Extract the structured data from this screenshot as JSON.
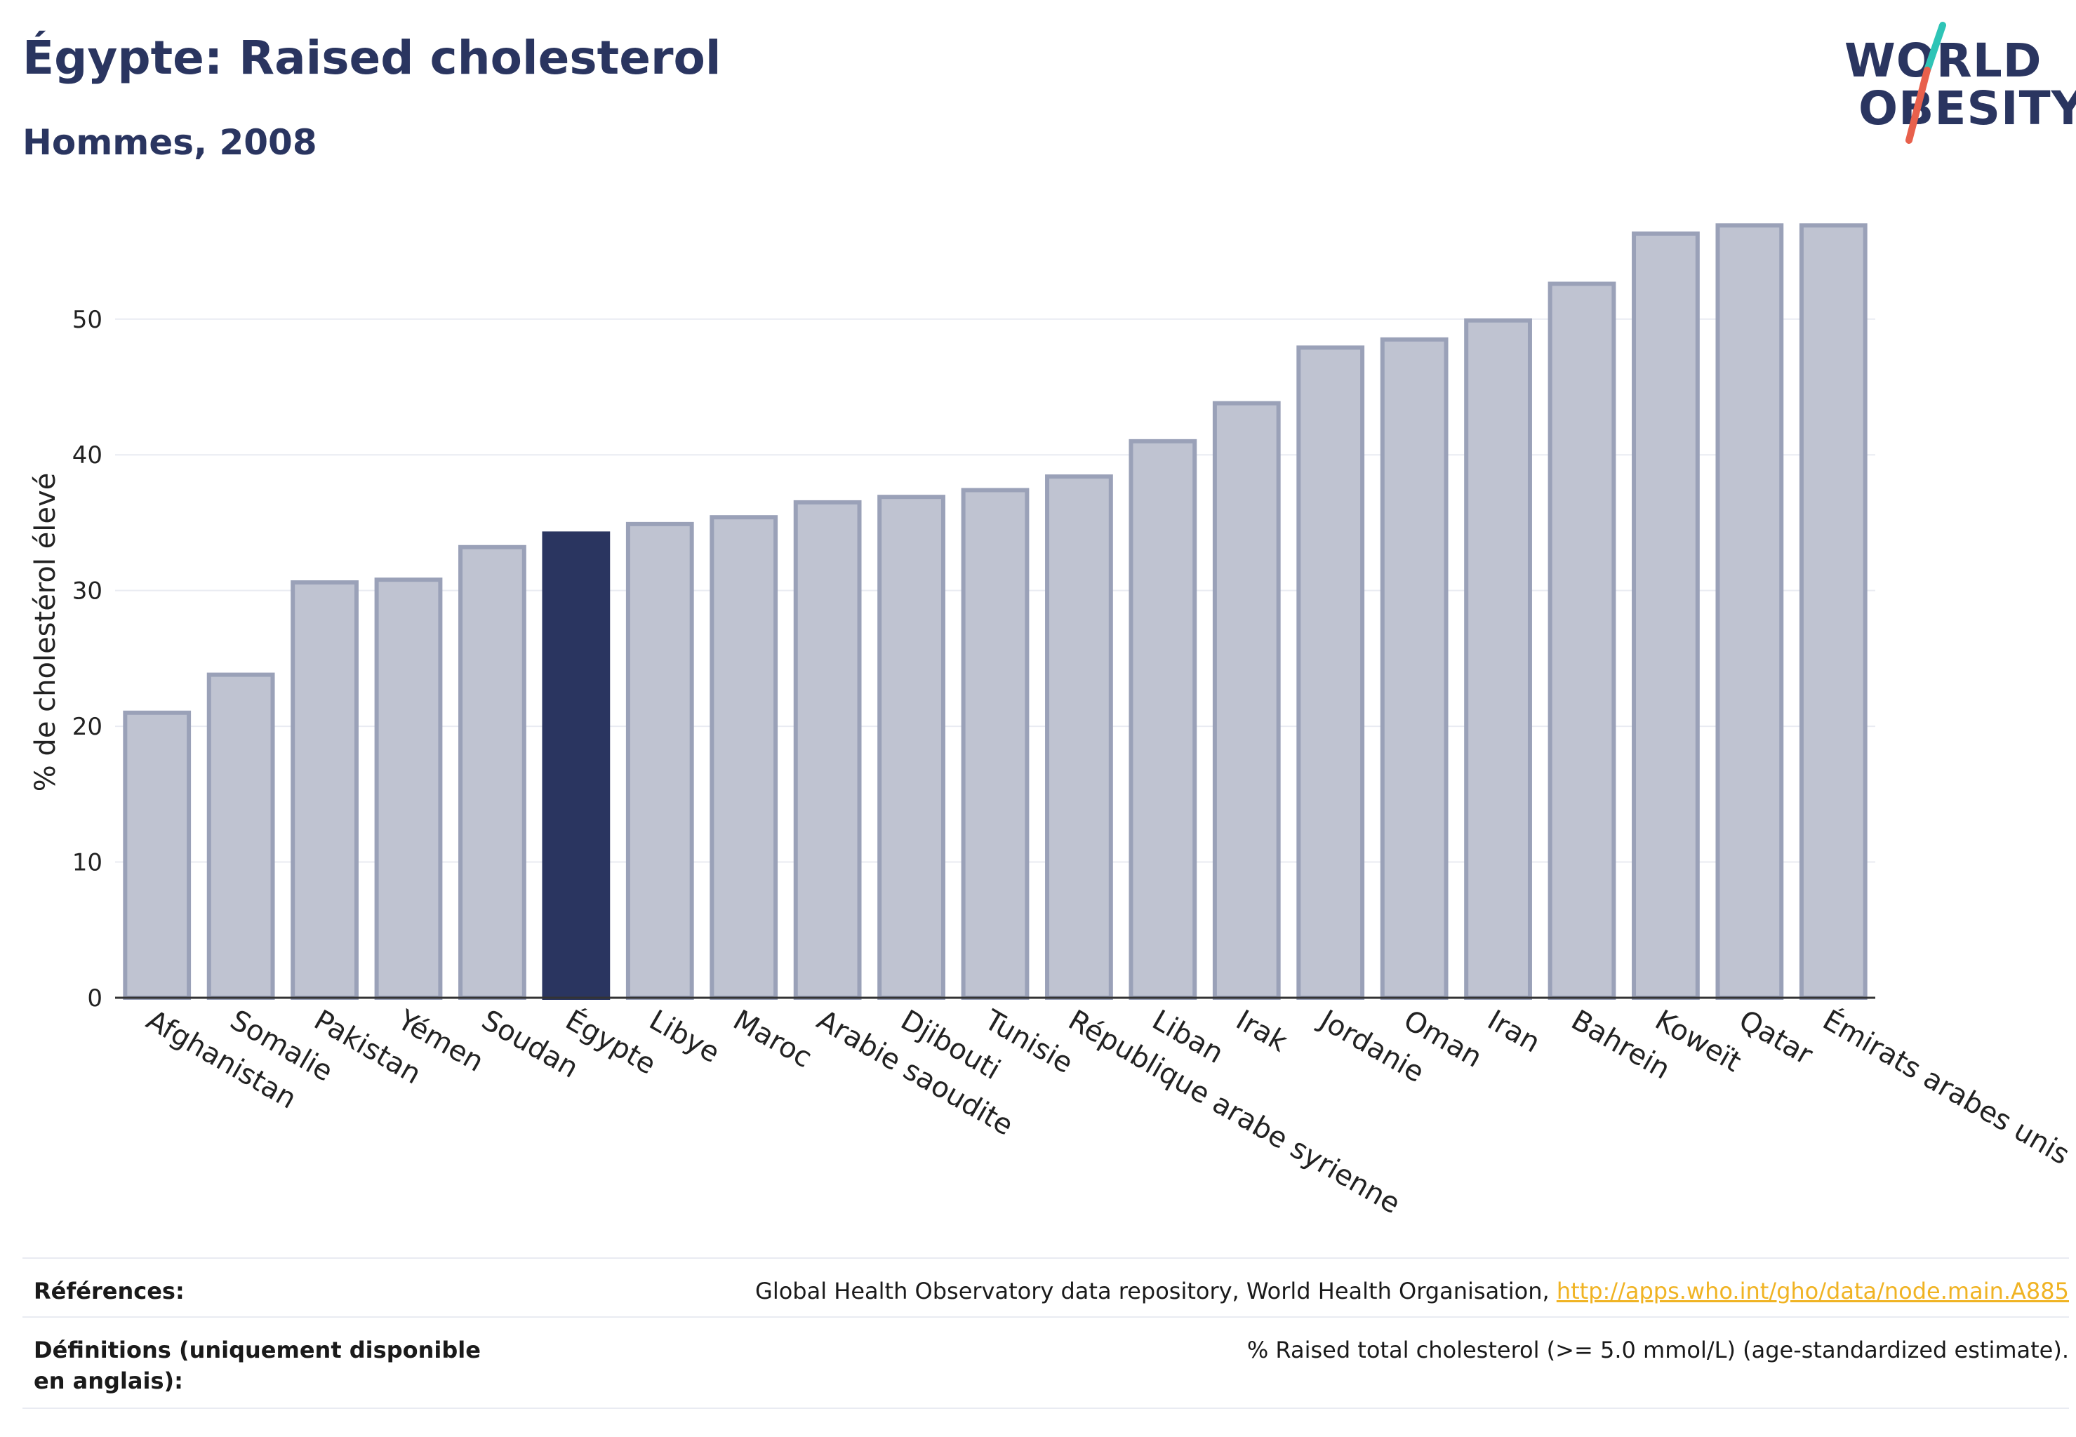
{
  "header": {
    "title": "Égypte: Raised cholesterol",
    "subtitle": "Hommes, 2008"
  },
  "logo": {
    "line1": "WORLD",
    "line2": "OBESITY",
    "colors": {
      "text": "#2a3560",
      "slash_top": "#2ec4b6",
      "slash_bottom": "#e8604c"
    }
  },
  "chart_data": {
    "type": "bar",
    "ylabel": "% de cholestérol élevé",
    "ylim": [
      0,
      58
    ],
    "yticks": [
      0,
      10,
      20,
      30,
      40,
      50
    ],
    "grid": true,
    "highlight": "Égypte",
    "colors": {
      "bar": "#bfc3d1",
      "bar_border": "#9aa1b8",
      "highlight": "#2a3560"
    },
    "categories": [
      "Afghanistan",
      "Somalie",
      "Pakistan",
      "Yémen",
      "Soudan",
      "Égypte",
      "Libye",
      "Maroc",
      "Arabie saoudite",
      "Djibouti",
      "Tunisie",
      "République arabe syrienne",
      "Liban",
      "Irak",
      "Jordanie",
      "Oman",
      "Iran",
      "Bahrein",
      "Koweït",
      "Qatar",
      "Émirats arabes unis"
    ],
    "values": [
      21.0,
      23.8,
      30.6,
      30.8,
      33.2,
      34.2,
      34.9,
      35.4,
      36.5,
      36.9,
      37.4,
      38.4,
      41.0,
      43.8,
      47.9,
      48.5,
      49.9,
      52.6,
      56.3,
      56.9,
      56.9
    ]
  },
  "footer": {
    "references_label": "Références:",
    "references_text": "Global Health Observatory data repository, World Health Organisation, ",
    "references_link": "http://apps.who.int/gho/data/node.main.A885",
    "definitions_label": "Définitions (uniquement disponible en anglais):",
    "definitions_text": "% Raised total cholesterol (>= 5.0 mmol/L) (age-standardized estimate)."
  }
}
